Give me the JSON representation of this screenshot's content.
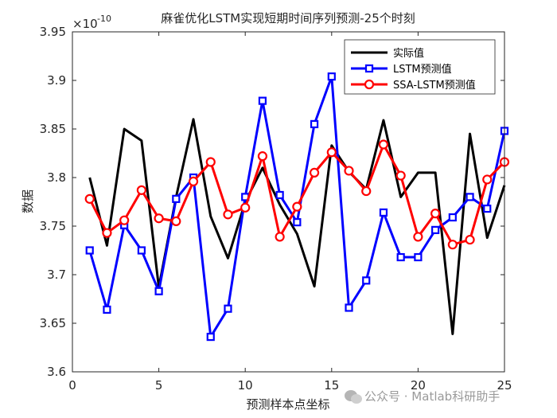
{
  "chart_data": {
    "type": "line",
    "title": "麻雀优化LSTM实现短期时间序列预测-25个时刻",
    "xlabel": "预测样本点坐标",
    "ylabel": "数据",
    "xlim": [
      0,
      25
    ],
    "ylim": [
      3.6,
      3.95
    ],
    "x_ticks": [
      "0",
      "5",
      "10",
      "15",
      "20",
      "25"
    ],
    "y_ticks": [
      "3.6",
      "3.65",
      "3.7",
      "3.75",
      "3.8",
      "3.85",
      "3.9",
      "3.95"
    ],
    "y_scale_note": {
      "base": "×10",
      "exponent": "-10"
    },
    "grid": false,
    "legend_position": "top-right",
    "x": [
      1,
      2,
      3,
      4,
      5,
      6,
      7,
      8,
      9,
      10,
      11,
      12,
      13,
      14,
      15,
      16,
      17,
      18,
      19,
      20,
      21,
      22,
      23,
      24,
      25
    ],
    "series": [
      {
        "name": "实际值",
        "color": "#000000",
        "marker": "none",
        "values": [
          3.8,
          3.73,
          3.85,
          3.838,
          3.687,
          3.78,
          3.86,
          3.76,
          3.717,
          3.775,
          3.81,
          3.772,
          3.742,
          3.688,
          3.833,
          3.806,
          3.788,
          3.859,
          3.78,
          3.805,
          3.805,
          3.639,
          3.845,
          3.738,
          3.792
        ]
      },
      {
        "name": "LSTM预测值",
        "color": "#0000ff",
        "marker": "square",
        "values": [
          3.725,
          3.664,
          3.751,
          3.725,
          3.683,
          3.778,
          3.8,
          3.636,
          3.665,
          3.78,
          3.879,
          3.782,
          3.754,
          3.855,
          3.904,
          3.666,
          3.694,
          3.764,
          3.718,
          3.718,
          3.746,
          3.759,
          3.78,
          3.768,
          3.848
        ]
      },
      {
        "name": "SSA-LSTM预测值",
        "color": "#ff0000",
        "marker": "circle",
        "values": [
          3.778,
          3.743,
          3.756,
          3.787,
          3.758,
          3.755,
          3.796,
          3.816,
          3.762,
          3.769,
          3.822,
          3.739,
          3.77,
          3.805,
          3.826,
          3.807,
          3.786,
          3.834,
          3.802,
          3.739,
          3.763,
          3.731,
          3.736,
          3.798,
          3.816
        ]
      }
    ]
  },
  "watermark": "公众号 · Matlab科研助手",
  "watermark_icon": "wechat-icon"
}
